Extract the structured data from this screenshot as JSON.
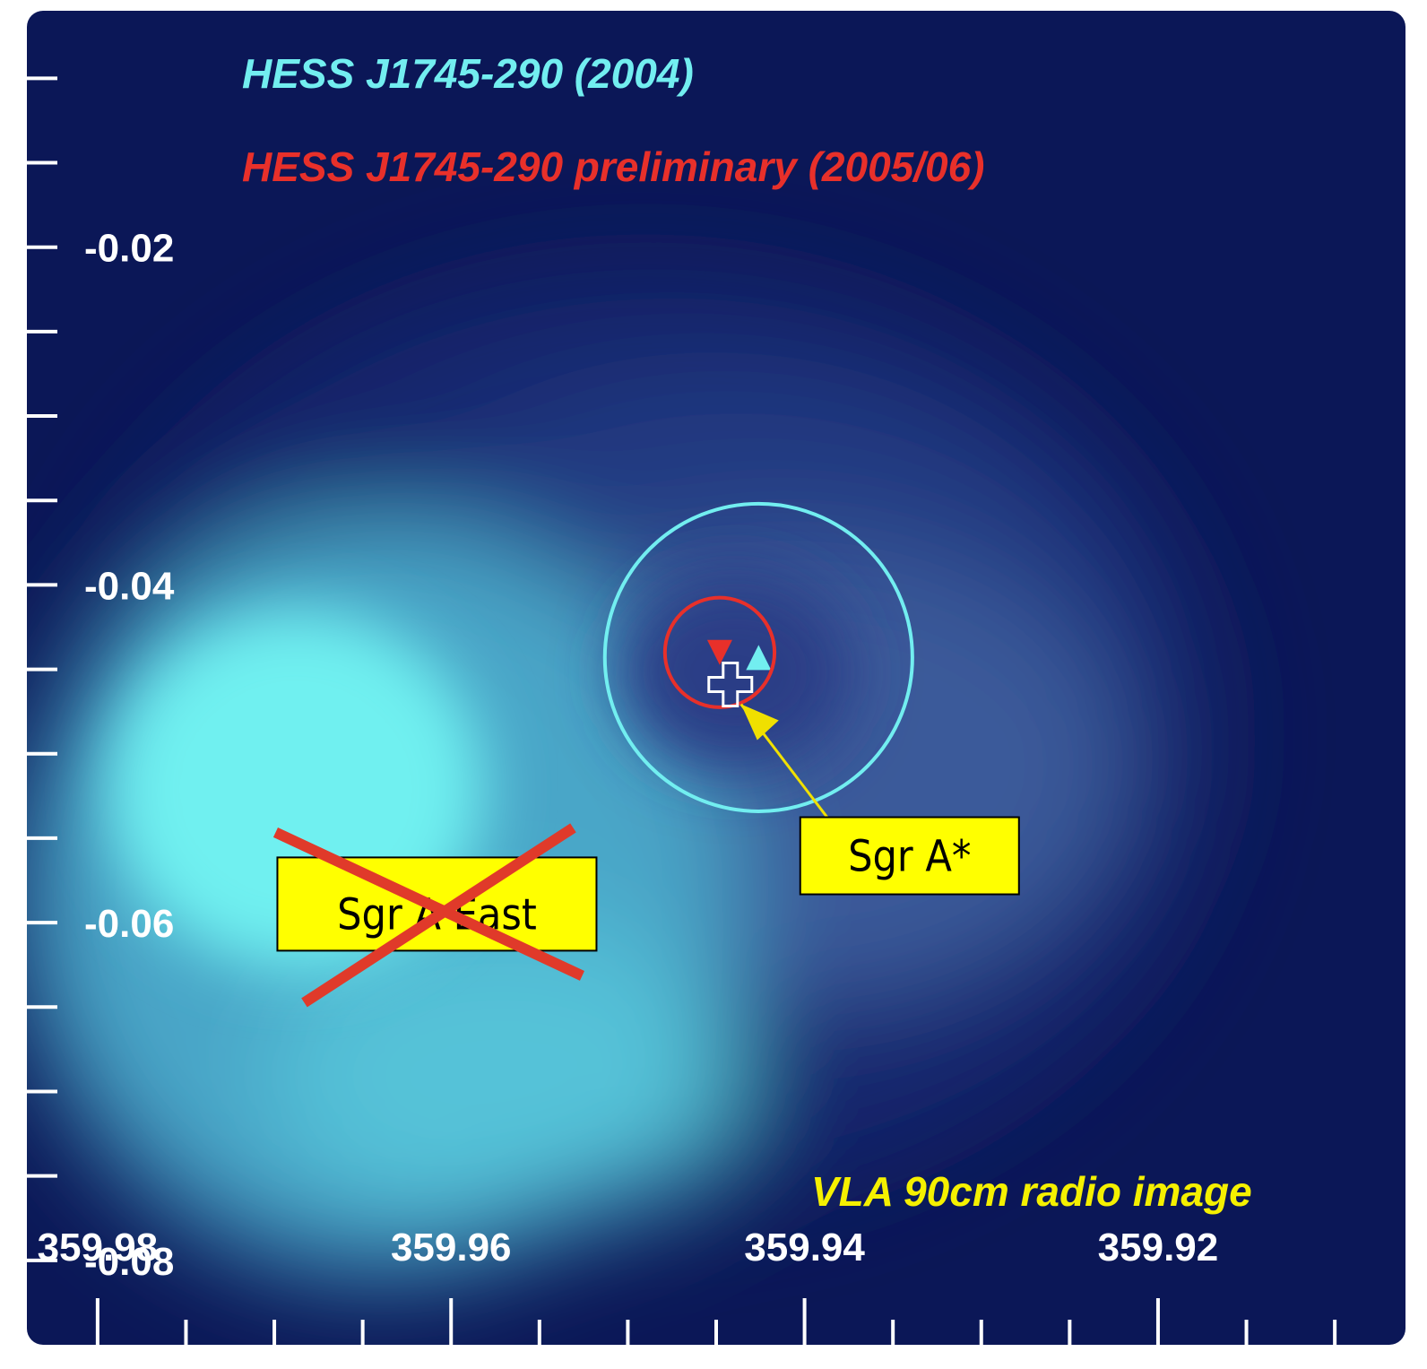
{
  "chart_data": {
    "type": "skymap",
    "xlim": [
      359.984,
      359.906
    ],
    "ylim": [
      -0.085,
      -0.006
    ],
    "xticks": [
      359.98,
      359.96,
      359.94,
      359.92
    ],
    "yticks": [
      -0.02,
      -0.04,
      -0.06,
      -0.08
    ],
    "xminorticks": [
      359.975,
      359.97,
      359.965,
      359.955,
      359.95,
      359.945,
      359.935,
      359.93,
      359.925,
      359.915,
      359.91
    ],
    "yminorticks": [
      -0.01,
      -0.015,
      -0.025,
      -0.03,
      -0.035,
      -0.045,
      -0.05,
      -0.055,
      -0.065,
      -0.07,
      -0.075
    ],
    "series": [
      {
        "name": "HESS J1745-290 (2004)",
        "color": "#72eef0",
        "marker": "triangle-up",
        "x": [
          359.9426
        ],
        "y": [
          -0.0443
        ],
        "radius": [
          0.0087
        ]
      },
      {
        "name": "HESS J1745-290 preliminary (2005/06)",
        "color": "#e8302a",
        "marker": "triangle-down",
        "x": [
          359.9448
        ],
        "y": [
          -0.044
        ],
        "radius": [
          0.0031
        ]
      }
    ],
    "sources": [
      {
        "label": "Sgr A*",
        "x": 359.9442,
        "y": -0.0459,
        "crossed": false
      },
      {
        "label": "Sgr A East",
        "x": 359.9608,
        "y": -0.0589,
        "crossed": true
      }
    ],
    "annotation": "VLA 90cm radio image"
  }
}
